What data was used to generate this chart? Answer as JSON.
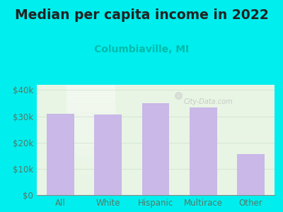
{
  "title": "Median per capita income in 2022",
  "subtitle": "Columbiaville, MI",
  "categories": [
    "All",
    "White",
    "Hispanic",
    "Multirace",
    "Other"
  ],
  "values": [
    31000,
    30800,
    35000,
    33500,
    15500
  ],
  "bar_color": "#c9b8e8",
  "title_fontsize": 13.5,
  "subtitle_fontsize": 10,
  "subtitle_color": "#00bbaa",
  "background_outer": "#00eeee",
  "background_inner": "#e8f5e4",
  "ylim": [
    0,
    42000
  ],
  "yticks": [
    0,
    10000,
    20000,
    30000,
    40000
  ],
  "ytick_labels": [
    "$0",
    "$10k",
    "$20k",
    "$30k",
    "$40k"
  ],
  "watermark": "City-Data.com",
  "tick_color": "#557766",
  "label_color": "#557766",
  "title_color": "#222222"
}
